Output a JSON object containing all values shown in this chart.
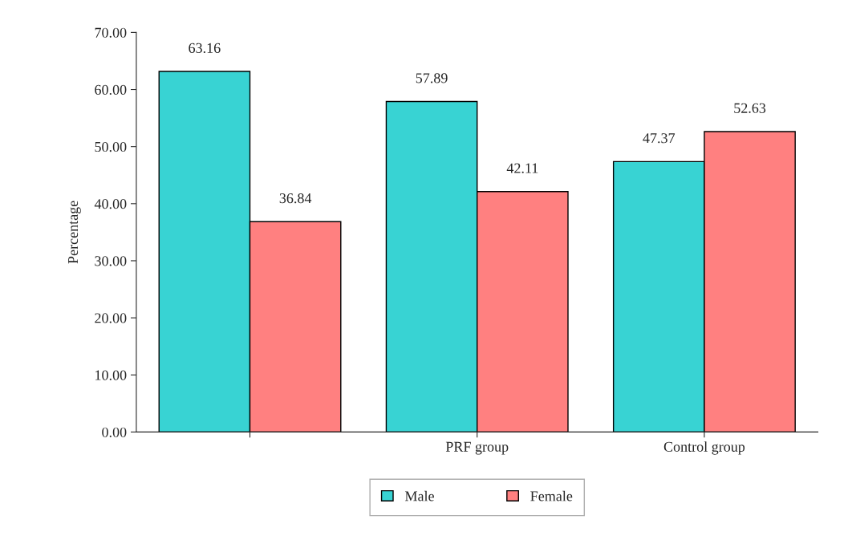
{
  "chart_data": {
    "type": "bar",
    "ylabel": "Percentage",
    "categories": [
      null,
      "PRF group",
      "Control group"
    ],
    "series": [
      {
        "name": "Male",
        "color": "#38d3d3",
        "values": [
          63.16,
          57.89,
          47.37
        ]
      },
      {
        "name": "Female",
        "color": "#ff8080",
        "values": [
          36.84,
          42.11,
          52.63
        ]
      }
    ],
    "ylim": [
      0,
      70
    ],
    "yticks": [
      {
        "value": 0,
        "label": "0.00"
      },
      {
        "value": 10,
        "label": "10.00"
      },
      {
        "value": 20,
        "label": "20.00"
      },
      {
        "value": 30,
        "label": "30.00"
      },
      {
        "value": 40,
        "label": "40.00"
      },
      {
        "value": 50,
        "label": "50.00"
      },
      {
        "value": 60,
        "label": "60.00"
      },
      {
        "value": 70,
        "label": "70.00"
      }
    ],
    "data_labels": true,
    "grid": false,
    "legend": "bottom"
  }
}
